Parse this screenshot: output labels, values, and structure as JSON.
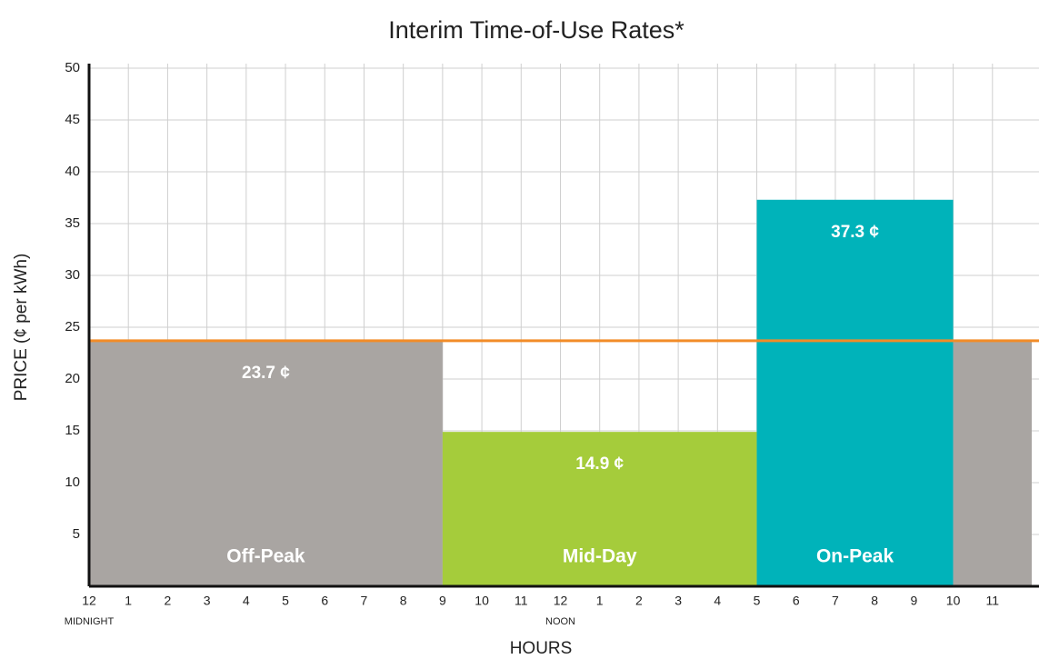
{
  "chart_data": {
    "type": "bar",
    "title": "Interim Time-of-Use Rates*",
    "y_label": "PRICE (¢ per kWh)",
    "x_label": "HOURS",
    "xlim": [
      0,
      24
    ],
    "xticks": [
      {
        "value": 0,
        "label": "12"
      },
      1,
      2,
      3,
      4,
      5,
      6,
      7,
      8,
      9,
      10,
      11,
      {
        "value": 12,
        "label": "12"
      },
      {
        "value": 13,
        "label": "1"
      },
      {
        "value": 14,
        "label": "2"
      },
      {
        "value": 15,
        "label": "3"
      },
      {
        "value": 16,
        "label": "4"
      },
      {
        "value": 17,
        "label": "5"
      },
      {
        "value": 18,
        "label": "6"
      },
      {
        "value": 19,
        "label": "7"
      },
      {
        "value": 20,
        "label": "8"
      },
      {
        "value": 21,
        "label": "9"
      },
      {
        "value": 22,
        "label": "10"
      },
      {
        "value": 23,
        "label": "11"
      }
    ],
    "annotations": [
      {
        "text": "MIDNIGHT",
        "x": 0
      },
      {
        "text": "NOON",
        "x": 12
      }
    ],
    "ylim": [
      0,
      50
    ],
    "yticks": [
      5,
      10,
      15,
      20,
      25,
      30,
      35,
      40,
      45,
      50
    ],
    "grid": true,
    "periods": [
      {
        "name": "Off-Peak",
        "start": 0,
        "end": 9,
        "value": 23.7,
        "value_label": "23.7 ¢",
        "color": "#a9a5a2"
      },
      {
        "name": "Mid-Day",
        "start": 9,
        "end": 17,
        "value": 14.9,
        "value_label": "14.9 ¢",
        "color": "#a5cc3b"
      },
      {
        "name": "On-Peak",
        "start": 17,
        "end": 22,
        "value": 37.3,
        "value_label": "37.3 ¢",
        "color": "#00b3ba"
      },
      {
        "name": null,
        "start": 22,
        "end": 24,
        "value": 23.7,
        "value_label": null,
        "color": "#a9a5a2"
      }
    ],
    "reference_line": {
      "value": 23.7,
      "color": "#f28c28"
    }
  }
}
